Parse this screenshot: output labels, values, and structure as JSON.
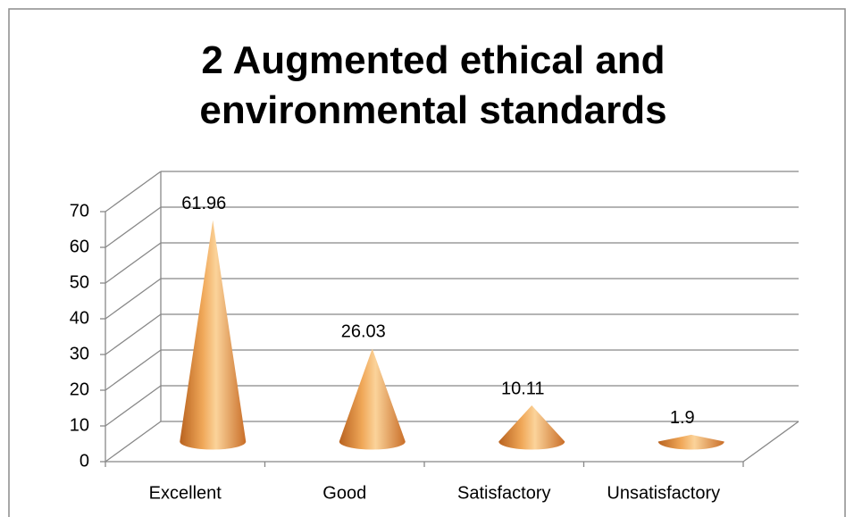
{
  "chart_data": {
    "type": "cone",
    "title": "2 Augmented ethical and environmental standards",
    "categories": [
      "Excellent",
      "Good",
      "Satisfactory",
      "Unsatisfactory"
    ],
    "values": [
      61.96,
      26.03,
      10.11,
      1.9
    ],
    "color": "#e8913f",
    "ylim": [
      0,
      70
    ],
    "yticks": [
      0,
      10,
      20,
      30,
      40,
      50,
      60,
      70
    ],
    "grid": true
  }
}
